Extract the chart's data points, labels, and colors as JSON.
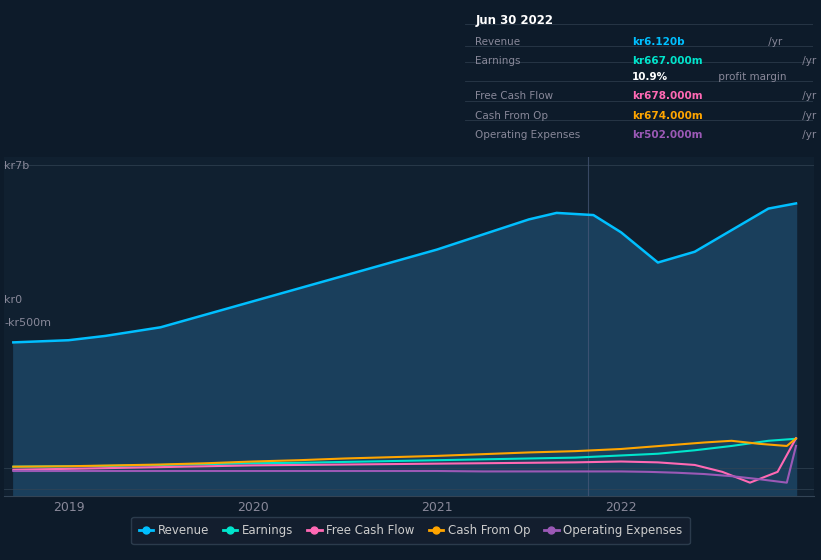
{
  "bg_color": "#0d1b2a",
  "plot_bg_color": "#102030",
  "title_box": {
    "date": "Jun 30 2022",
    "rows": [
      {
        "label": "Revenue",
        "value": "kr6.120b",
        "value_color": "#00bfff",
        "suffix": " /yr"
      },
      {
        "label": "Earnings",
        "value": "kr667.000m",
        "value_color": "#00e5cc",
        "suffix": " /yr"
      },
      {
        "label": "",
        "value": "10.9%",
        "value_color": "#ffffff",
        "suffix": " profit margin"
      },
      {
        "label": "Free Cash Flow",
        "value": "kr678.000m",
        "value_color": "#ff69b4",
        "suffix": " /yr"
      },
      {
        "label": "Cash From Op",
        "value": "kr674.000m",
        "value_color": "#ffa500",
        "suffix": " /yr"
      },
      {
        "label": "Operating Expenses",
        "value": "kr502.000m",
        "value_color": "#9b59b6",
        "suffix": " /yr"
      }
    ]
  },
  "ylabel_top": "kr7b",
  "ylabel_zero": "kr0",
  "ylabel_bottom": "-kr500m",
  "x_ticks": [
    2019,
    2020,
    2021,
    2022
  ],
  "legend": [
    {
      "label": "Revenue",
      "color": "#00bfff"
    },
    {
      "label": "Earnings",
      "color": "#00e5cc"
    },
    {
      "label": "Free Cash Flow",
      "color": "#ff69b4"
    },
    {
      "label": "Cash From Op",
      "color": "#ffa500"
    },
    {
      "label": "Operating Expenses",
      "color": "#9b59b6"
    }
  ],
  "revenue": {
    "x": [
      2018.7,
      2019.0,
      2019.2,
      2019.5,
      2019.75,
      2020.0,
      2020.25,
      2020.5,
      2020.75,
      2021.0,
      2021.25,
      2021.5,
      2021.65,
      2021.85,
      2022.0,
      2022.2,
      2022.4,
      2022.6,
      2022.8,
      2022.95
    ],
    "y": [
      2.9,
      2.95,
      3.05,
      3.25,
      3.55,
      3.85,
      4.15,
      4.45,
      4.75,
      5.05,
      5.4,
      5.75,
      5.9,
      5.85,
      5.45,
      4.75,
      5.0,
      5.5,
      6.0,
      6.12
    ],
    "color": "#00bfff",
    "fill_color": "#1a3f5c"
  },
  "earnings": {
    "x": [
      2018.7,
      2019.0,
      2019.25,
      2019.5,
      2019.75,
      2020.0,
      2020.25,
      2020.5,
      2020.75,
      2021.0,
      2021.25,
      2021.5,
      2021.75,
      2022.0,
      2022.2,
      2022.4,
      2022.6,
      2022.8,
      2022.95
    ],
    "y": [
      0.02,
      0.03,
      0.04,
      0.06,
      0.08,
      0.1,
      0.11,
      0.13,
      0.15,
      0.17,
      0.19,
      0.21,
      0.23,
      0.28,
      0.32,
      0.4,
      0.5,
      0.62,
      0.667
    ],
    "color": "#00e5cc"
  },
  "free_cash_flow": {
    "x": [
      2018.7,
      2019.0,
      2019.25,
      2019.5,
      2019.75,
      2020.0,
      2020.25,
      2020.5,
      2020.75,
      2021.0,
      2021.25,
      2021.5,
      2021.75,
      2022.0,
      2022.2,
      2022.4,
      2022.55,
      2022.7,
      2022.85,
      2022.95
    ],
    "y": [
      -0.05,
      -0.03,
      -0.01,
      0.01,
      0.03,
      0.05,
      0.06,
      0.07,
      0.08,
      0.09,
      0.1,
      0.11,
      0.12,
      0.14,
      0.12,
      0.06,
      -0.1,
      -0.35,
      -0.1,
      0.678
    ],
    "color": "#ff69b4"
  },
  "cash_from_op": {
    "x": [
      2018.7,
      2019.0,
      2019.25,
      2019.5,
      2019.75,
      2020.0,
      2020.25,
      2020.5,
      2020.75,
      2021.0,
      2021.25,
      2021.5,
      2021.75,
      2022.0,
      2022.15,
      2022.3,
      2022.45,
      2022.6,
      2022.75,
      2022.9,
      2022.95
    ],
    "y": [
      0.02,
      0.03,
      0.05,
      0.07,
      0.1,
      0.14,
      0.17,
      0.21,
      0.24,
      0.27,
      0.31,
      0.35,
      0.38,
      0.43,
      0.48,
      0.53,
      0.58,
      0.62,
      0.55,
      0.5,
      0.674
    ],
    "color": "#ffa500"
  },
  "op_expenses": {
    "x": [
      2018.7,
      2019.0,
      2019.25,
      2019.5,
      2019.75,
      2020.0,
      2020.25,
      2020.5,
      2020.75,
      2021.0,
      2021.25,
      2021.5,
      2021.75,
      2022.0,
      2022.15,
      2022.3,
      2022.45,
      2022.6,
      2022.75,
      2022.9,
      2022.95
    ],
    "y": [
      -0.08,
      -0.08,
      -0.08,
      -0.08,
      -0.08,
      -0.08,
      -0.08,
      -0.08,
      -0.08,
      -0.08,
      -0.09,
      -0.09,
      -0.09,
      -0.09,
      -0.1,
      -0.12,
      -0.15,
      -0.2,
      -0.27,
      -0.35,
      0.502
    ],
    "color": "#9b59b6"
  },
  "xmin": 2018.65,
  "xmax": 2023.05,
  "ymin": -0.65,
  "ymax": 7.2,
  "vline_x": 2021.82,
  "y_kr7b": 7.0,
  "y_kr0": 0.0,
  "y_kr500m": -0.5
}
